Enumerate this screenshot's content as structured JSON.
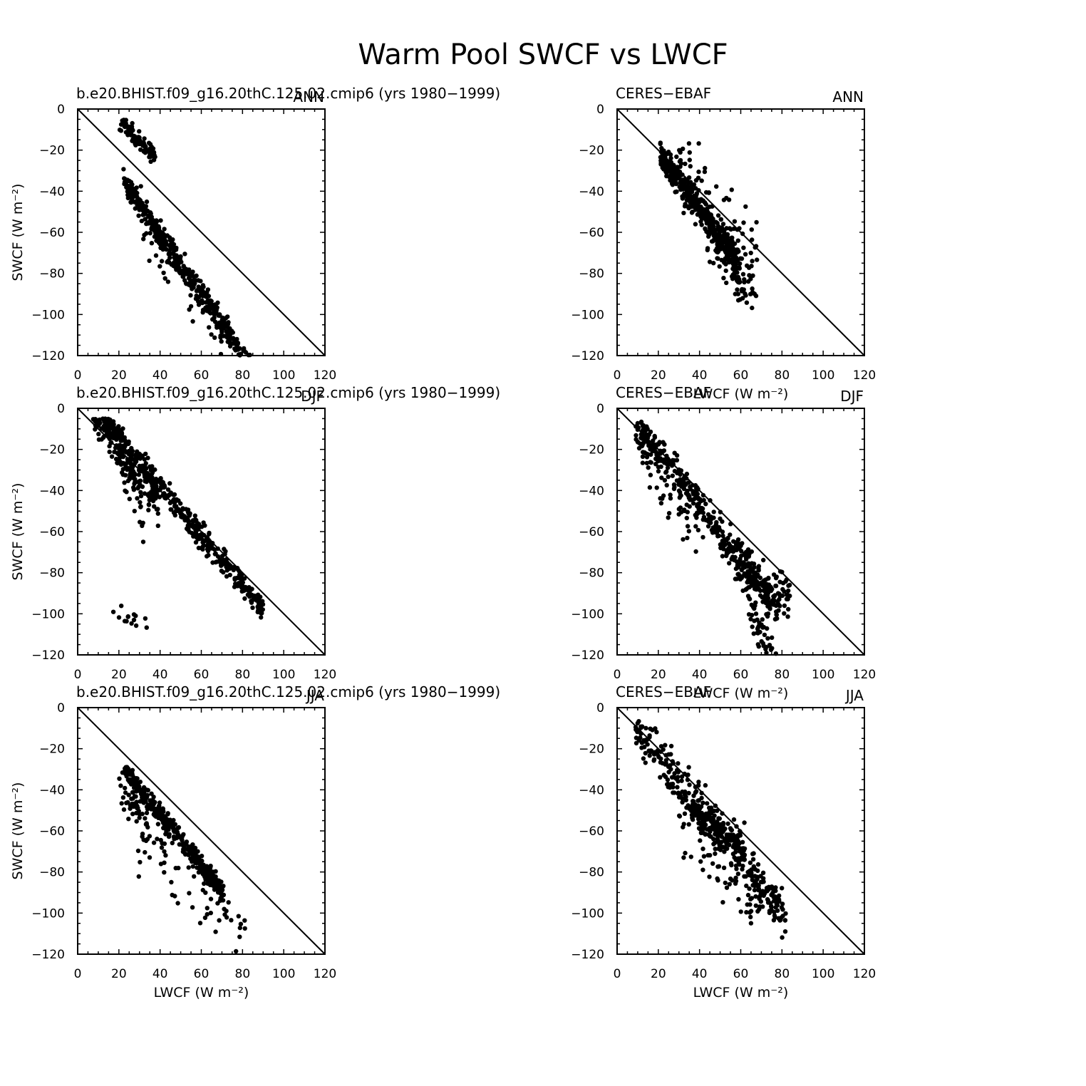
{
  "title": "Warm Pool SWCF vs LWCF",
  "colors": {
    "points": "#000000",
    "background": "#ffffff"
  },
  "chart_data": [
    {
      "type": "scatter",
      "left_label": "b.e20.BHIST.f09_g16.20thC.125.02.cmip6 (yrs 1980−1999)",
      "right_label": "ANN",
      "xlabel": "",
      "ylabel": "SWCF (W m⁻²)",
      "xlim": [
        0,
        120
      ],
      "ylim": [
        -120,
        0
      ],
      "xticks": [
        "0",
        "20",
        "40",
        "60",
        "80",
        "100",
        "120"
      ],
      "yticks": [
        "0",
        "−20",
        "−40",
        "−60",
        "−80",
        "−100",
        "−120"
      ],
      "reference_line": "y = -x",
      "clusters": [
        {
          "x0": 22,
          "x1": 84,
          "k": 1.45,
          "b": 3,
          "spread": 5,
          "n": 360,
          "seed": 101
        },
        {
          "x0": 20,
          "x1": 38,
          "k": 1.05,
          "b": -16,
          "spread": 4,
          "n": 90,
          "seed": 102
        },
        {
          "x0": 24,
          "x1": 42,
          "k": 1.35,
          "b": 6,
          "spread": 2,
          "n": 40,
          "seed": 103
        },
        {
          "x0": 30,
          "x1": 82,
          "k": 1.4,
          "b": 10,
          "spread": 12,
          "n": 80,
          "seed": 104
        }
      ]
    },
    {
      "type": "scatter",
      "left_label": "CERES−EBAF",
      "right_label": "ANN",
      "xlabel": "LWCF (W m⁻²)",
      "ylabel": "",
      "xlim": [
        0,
        120
      ],
      "ylim": [
        -120,
        0
      ],
      "xticks": [
        "0",
        "20",
        "40",
        "60",
        "80",
        "100",
        "120"
      ],
      "yticks": [
        "0",
        "−20",
        "−40",
        "−60",
        "−80",
        "−100",
        "−120"
      ],
      "reference_line": "y = -x",
      "clusters": [
        {
          "x0": 21,
          "x1": 58,
          "k": 1.35,
          "b": -6,
          "spread": 6,
          "n": 380,
          "seed": 201
        },
        {
          "x0": 42,
          "x1": 66,
          "k": 1.4,
          "b": -2,
          "spread": 11,
          "n": 110,
          "seed": 202
        },
        {
          "x0": 30,
          "x1": 68,
          "k": 1.2,
          "b": -8,
          "spread": 15,
          "n": 70,
          "seed": 203
        }
      ]
    },
    {
      "type": "scatter",
      "left_label": "b.e20.BHIST.f09_g16.20thC.125.02.cmip6 (yrs 1980−1999)",
      "right_label": "DJF",
      "xlabel": "",
      "ylabel": "SWCF (W m⁻²)",
      "xlim": [
        0,
        120
      ],
      "ylim": [
        -120,
        0
      ],
      "xticks": [
        "0",
        "20",
        "40",
        "60",
        "80",
        "100",
        "120"
      ],
      "yticks": [
        "0",
        "−20",
        "−40",
        "−60",
        "−80",
        "−100",
        "−120"
      ],
      "reference_line": "y = -x",
      "clusters": [
        {
          "x0": 7,
          "x1": 90,
          "k": 1.2,
          "b": -10,
          "spread": 5,
          "n": 420,
          "seed": 301
        },
        {
          "x0": 7,
          "x1": 40,
          "k": 1.5,
          "b": -12,
          "spread": 9,
          "n": 180,
          "seed": 302
        },
        {
          "x0": 12,
          "x1": 32,
          "k": 2.6,
          "b": -30,
          "spread": 10,
          "n": 60,
          "seed": 303
        },
        {
          "x0": 17,
          "x1": 35,
          "k": 0.3,
          "b": 95,
          "spread": 6,
          "n": 14,
          "seed": 304
        }
      ]
    },
    {
      "type": "scatter",
      "left_label": "CERES−EBAF",
      "right_label": "DJF",
      "xlabel": "LWCF (W m⁻²)",
      "ylabel": "",
      "xlim": [
        0,
        120
      ],
      "ylim": [
        -120,
        0
      ],
      "xticks": [
        "0",
        "20",
        "40",
        "60",
        "80",
        "100",
        "120"
      ],
      "yticks": [
        "0",
        "−20",
        "−40",
        "−60",
        "−80",
        "−100",
        "−120"
      ],
      "reference_line": "y = -x",
      "clusters": [
        {
          "x0": 9,
          "x1": 78,
          "k": 1.3,
          "b": -4,
          "spread": 8,
          "n": 420,
          "seed": 401
        },
        {
          "x0": 58,
          "x1": 84,
          "k": 0.5,
          "b": 50,
          "spread": 10,
          "n": 100,
          "seed": 402
        },
        {
          "x0": 64,
          "x1": 78,
          "k": 2.0,
          "b": -30,
          "spread": 8,
          "n": 60,
          "seed": 403
        },
        {
          "x0": 12,
          "x1": 40,
          "k": 1.6,
          "b": 4,
          "spread": 14,
          "n": 40,
          "seed": 404
        }
      ]
    },
    {
      "type": "scatter",
      "left_label": "b.e20.BHIST.f09_g16.20thC.125.02.cmip6 (yrs 1980−1999)",
      "right_label": "JJA",
      "xlabel": "LWCF (W m⁻²)",
      "ylabel": "SWCF (W m⁻²)",
      "xlim": [
        0,
        120
      ],
      "ylim": [
        -120,
        0
      ],
      "xticks": [
        "0",
        "20",
        "40",
        "60",
        "80",
        "100",
        "120"
      ],
      "yticks": [
        "0",
        "−20",
        "−40",
        "−60",
        "−80",
        "−100",
        "−120"
      ],
      "reference_line": "y = -x",
      "clusters": [
        {
          "x0": 23,
          "x1": 71,
          "k": 1.25,
          "b": 2,
          "spread": 4,
          "n": 380,
          "seed": 501
        },
        {
          "x0": 20,
          "x1": 34,
          "k": 1.3,
          "b": 12,
          "spread": 9,
          "n": 50,
          "seed": 502
        },
        {
          "x0": 28,
          "x1": 82,
          "k": 0.9,
          "b": 35,
          "spread": 14,
          "n": 70,
          "seed": 503
        }
      ]
    },
    {
      "type": "scatter",
      "left_label": "CERES−EBAF",
      "right_label": "JJA",
      "xlabel": "LWCF (W m⁻²)",
      "ylabel": "",
      "xlim": [
        0,
        120
      ],
      "ylim": [
        -120,
        0
      ],
      "xticks": [
        "0",
        "20",
        "40",
        "60",
        "80",
        "100",
        "120"
      ],
      "yticks": [
        "0",
        "−20",
        "−40",
        "−60",
        "−80",
        "−100",
        "−120"
      ],
      "reference_line": "y = -x",
      "clusters": [
        {
          "x0": 9,
          "x1": 83,
          "k": 1.28,
          "b": -2,
          "spread": 9,
          "n": 320,
          "seed": 601
        },
        {
          "x0": 36,
          "x1": 62,
          "k": 0.6,
          "b": 30,
          "spread": 7,
          "n": 160,
          "seed": 602
        },
        {
          "x0": 30,
          "x1": 70,
          "k": 1.1,
          "b": 20,
          "spread": 18,
          "n": 80,
          "seed": 603
        }
      ]
    }
  ]
}
